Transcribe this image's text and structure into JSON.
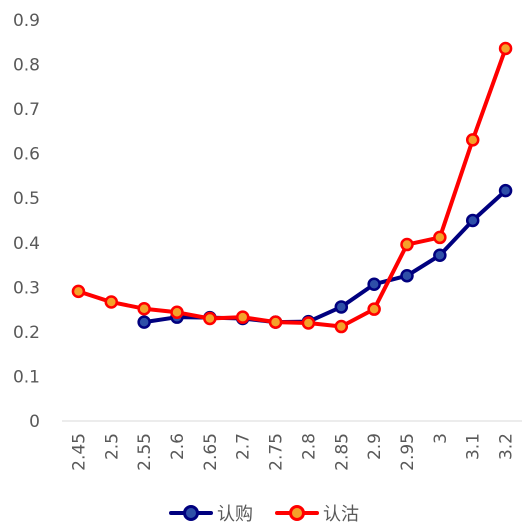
{
  "chart_data": {
    "type": "line",
    "title": "",
    "xlabel": "",
    "ylabel": "",
    "categories": [
      "2.45",
      "2.5",
      "2.55",
      "2.6",
      "2.65",
      "2.7",
      "2.75",
      "2.8",
      "2.85",
      "2.9",
      "2.95",
      "3",
      "3.1",
      "3.2"
    ],
    "ylim": [
      0,
      0.9
    ],
    "yticks": [
      "0",
      "0.1",
      "0.2",
      "0.3",
      "0.4",
      "0.5",
      "0.6",
      "0.7",
      "0.8",
      "0.9"
    ],
    "grid": false,
    "legend_position": "bottom",
    "series": [
      {
        "name": "认购",
        "color": "#00007f",
        "marker_fill": "#2e4fa8",
        "values": [
          null,
          null,
          0.222,
          0.233,
          0.232,
          0.23,
          0.222,
          0.223,
          0.256,
          0.307,
          0.326,
          0.372,
          0.45,
          0.517
        ]
      },
      {
        "name": "认沽",
        "color": "#ff0000",
        "marker_fill": "#f4a12a",
        "values": [
          0.291,
          0.267,
          0.252,
          0.244,
          0.23,
          0.233,
          0.222,
          0.22,
          0.212,
          0.251,
          0.396,
          0.412,
          0.631,
          0.836
        ]
      }
    ]
  }
}
